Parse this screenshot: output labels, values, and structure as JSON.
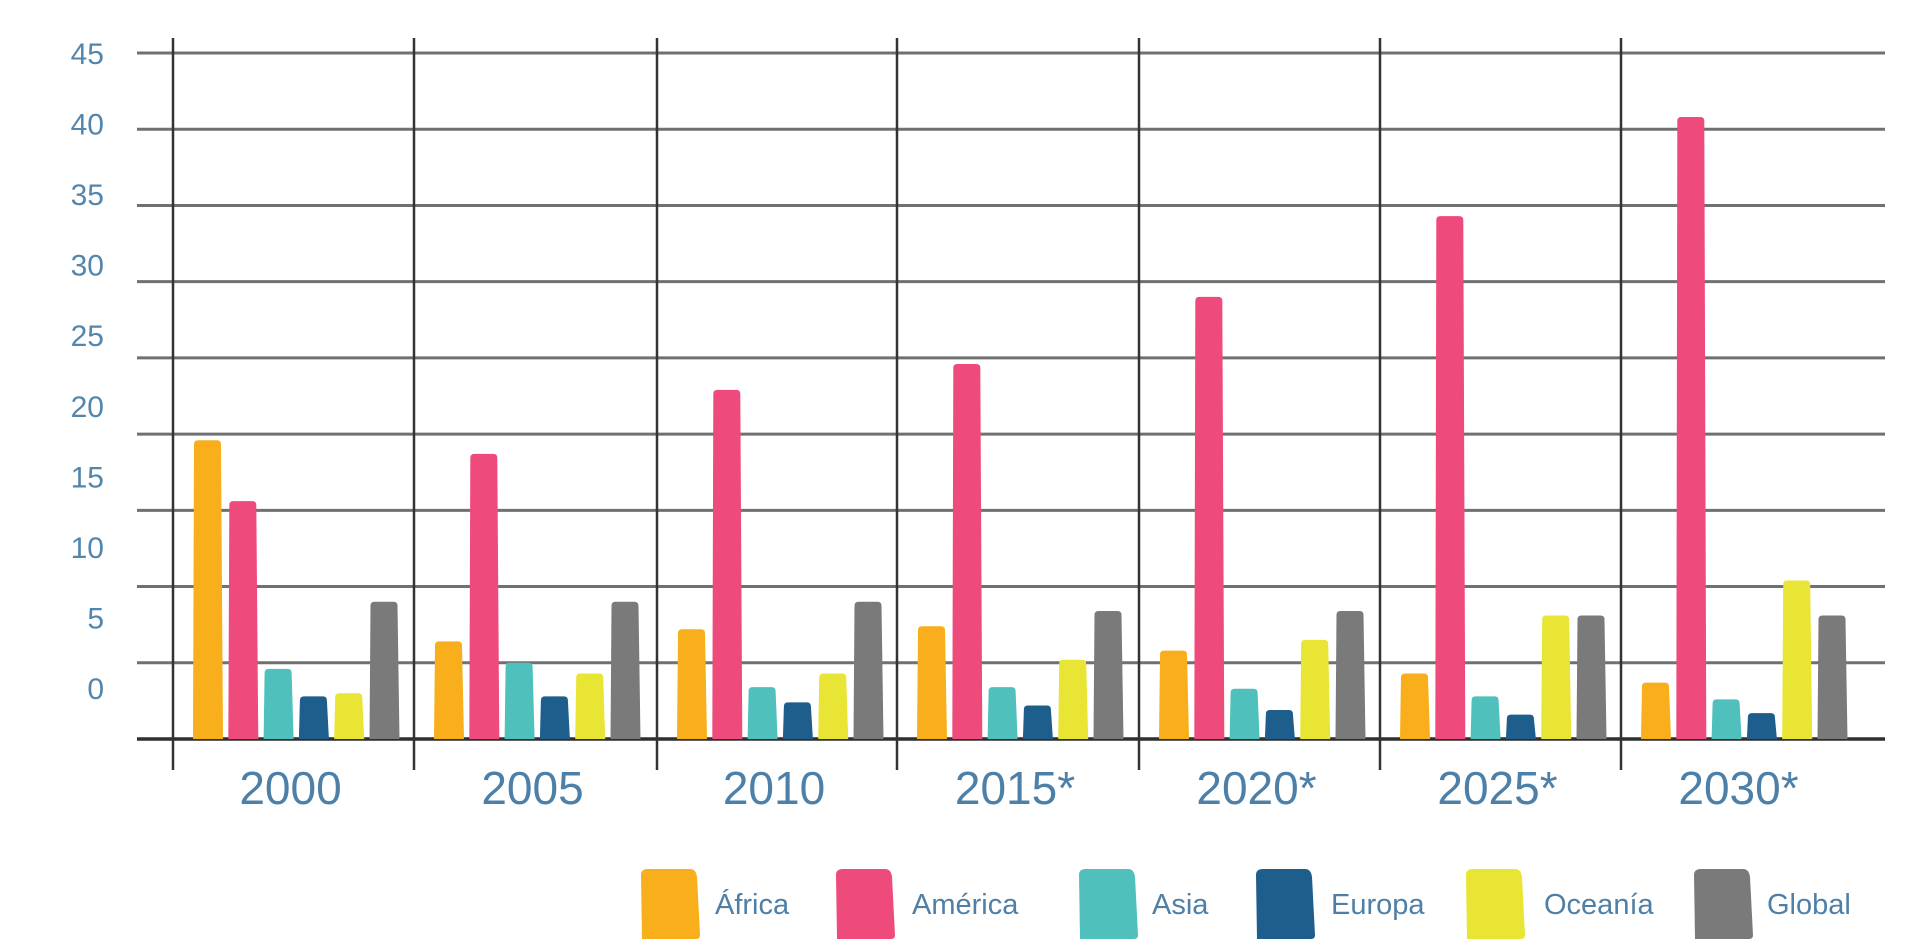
{
  "chart_data": {
    "type": "bar",
    "title": "",
    "xlabel": "",
    "ylabel": "",
    "ylim": [
      0,
      45
    ],
    "yticks": [
      0,
      5,
      10,
      15,
      20,
      25,
      30,
      35,
      40,
      45
    ],
    "ytick_labels": [
      "0",
      "5",
      "10",
      "15",
      "20",
      "25",
      "30",
      "35",
      "40",
      "45"
    ],
    "grid": true,
    "legend_position": "bottom-right",
    "categories": [
      "2000",
      "2005",
      "2010",
      "2015*",
      "2020*",
      "2025*",
      "2030*"
    ],
    "series": [
      {
        "name": "África",
        "color": "#f9ae1b",
        "values": [
          19.6,
          6.4,
          7.2,
          7.4,
          5.8,
          4.3,
          3.7
        ]
      },
      {
        "name": "América",
        "color": "#ef4a7c",
        "values": [
          15.6,
          18.7,
          22.9,
          24.6,
          29.0,
          34.3,
          40.8
        ]
      },
      {
        "name": "Asia",
        "color": "#4fc0bc",
        "values": [
          4.6,
          5.0,
          3.4,
          3.4,
          3.3,
          2.8,
          2.6
        ]
      },
      {
        "name": "Europa",
        "color": "#1d5e8c",
        "values": [
          2.8,
          2.8,
          2.4,
          2.2,
          1.9,
          1.6,
          1.7
        ]
      },
      {
        "name": "Oceanía",
        "color": "#e9e534",
        "values": [
          3.0,
          4.3,
          4.3,
          5.2,
          6.5,
          8.1,
          10.4
        ]
      },
      {
        "name": "Global",
        "color": "#7a7a7a",
        "values": [
          9.0,
          9.0,
          9.0,
          8.4,
          8.4,
          8.1,
          8.1
        ]
      }
    ]
  },
  "colors": {
    "tick_text": "#4d80a8",
    "gridline": "#707070",
    "separator": "#333333"
  }
}
